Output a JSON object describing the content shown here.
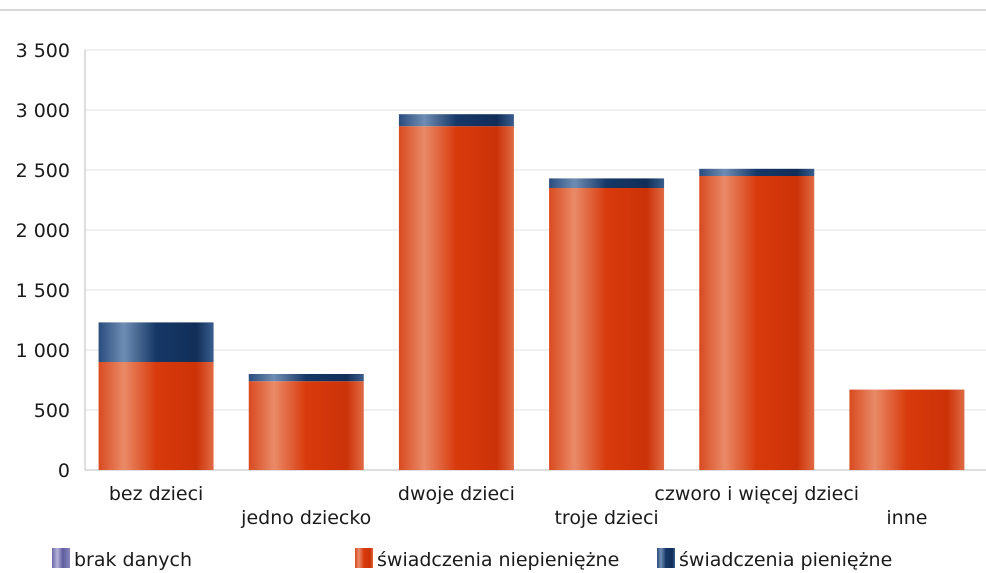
{
  "chart_data": {
    "type": "bar",
    "stacked": true,
    "categories": [
      "bez dzieci",
      "jedno dziecko",
      "dwoje dzieci",
      "troje dzieci",
      "czworo i więcej dzieci",
      "inne"
    ],
    "series": [
      {
        "name": "brak danych",
        "values": [
          0,
          0,
          0,
          0,
          0,
          0
        ]
      },
      {
        "name": "świadczenia niepieniężne",
        "values": [
          900,
          740,
          2865,
          2350,
          2450,
          670
        ]
      },
      {
        "name": "świadczenia pieniężne",
        "values": [
          330,
          60,
          100,
          80,
          60,
          0
        ]
      }
    ],
    "ylim": [
      0,
      3500
    ],
    "yticks": [
      0,
      500,
      1000,
      1500,
      2000,
      2500,
      3000,
      3500
    ],
    "ytick_labels": [
      "0",
      "500",
      "1 000",
      "1 500",
      "2 000",
      "2 500",
      "3 000",
      "3 500"
    ],
    "grid": true,
    "legend_position": "bottom",
    "colors": {
      "brak danych": "#7a78b5",
      "świadczenia niepieniężne": "#d93a10",
      "świadczenia pieniężne": "#1c3d6e"
    }
  }
}
